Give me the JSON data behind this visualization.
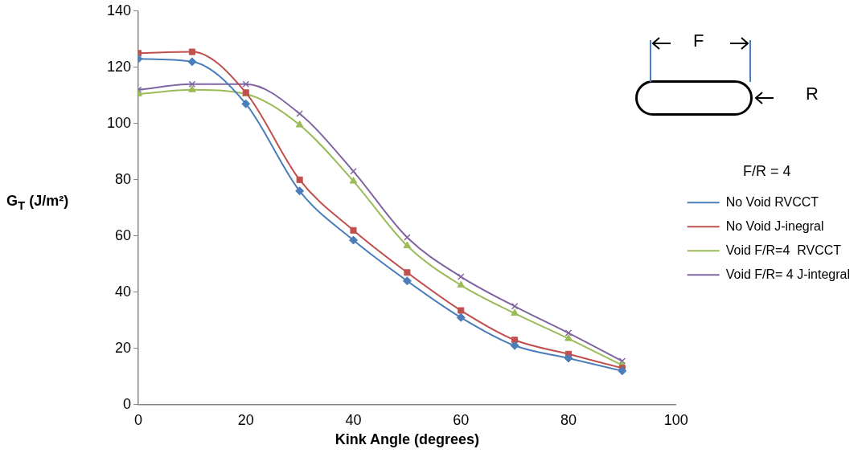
{
  "chart_data": {
    "type": "line",
    "xlabel": "Kink Angle (degrees)",
    "ylabel": "G$_{T}$ (J/m²)",
    "legend_title": "F/R = 4",
    "legend": "right",
    "x": [
      0,
      10,
      20,
      30,
      40,
      50,
      60,
      70,
      80,
      90
    ],
    "xlim": [
      0,
      100
    ],
    "xticks": [
      0,
      20,
      40,
      60,
      80,
      100
    ],
    "ylim": [
      0,
      140
    ],
    "yticks": [
      0,
      20,
      40,
      60,
      80,
      100,
      120,
      140
    ],
    "grid": false,
    "series": [
      {
        "name": "No Void RVCCT",
        "color": "#4a7ebb",
        "marker": "diamond",
        "values": [
          123,
          122,
          107,
          76,
          58.5,
          44,
          31,
          21,
          16.5,
          12
        ]
      },
      {
        "name": "No Void J-inegral",
        "color": "#c0504d",
        "marker": "square",
        "values": [
          125,
          125.5,
          111,
          80,
          62,
          47,
          33.5,
          23,
          18,
          13
        ]
      },
      {
        "name": "Void F/R=4  RVCCT",
        "color": "#9bbb59",
        "marker": "triangle",
        "values": [
          110.5,
          112,
          110.5,
          99.5,
          79.5,
          56.5,
          42.5,
          32.5,
          23.5,
          14
        ]
      },
      {
        "name": "Void F/R= 4 J-integral",
        "color": "#8064a2",
        "marker": "cross",
        "values": [
          112,
          114,
          114,
          103.5,
          83,
          59.5,
          45.5,
          35,
          25.5,
          15.5
        ]
      }
    ],
    "annotations": [
      "F",
      "R"
    ]
  }
}
